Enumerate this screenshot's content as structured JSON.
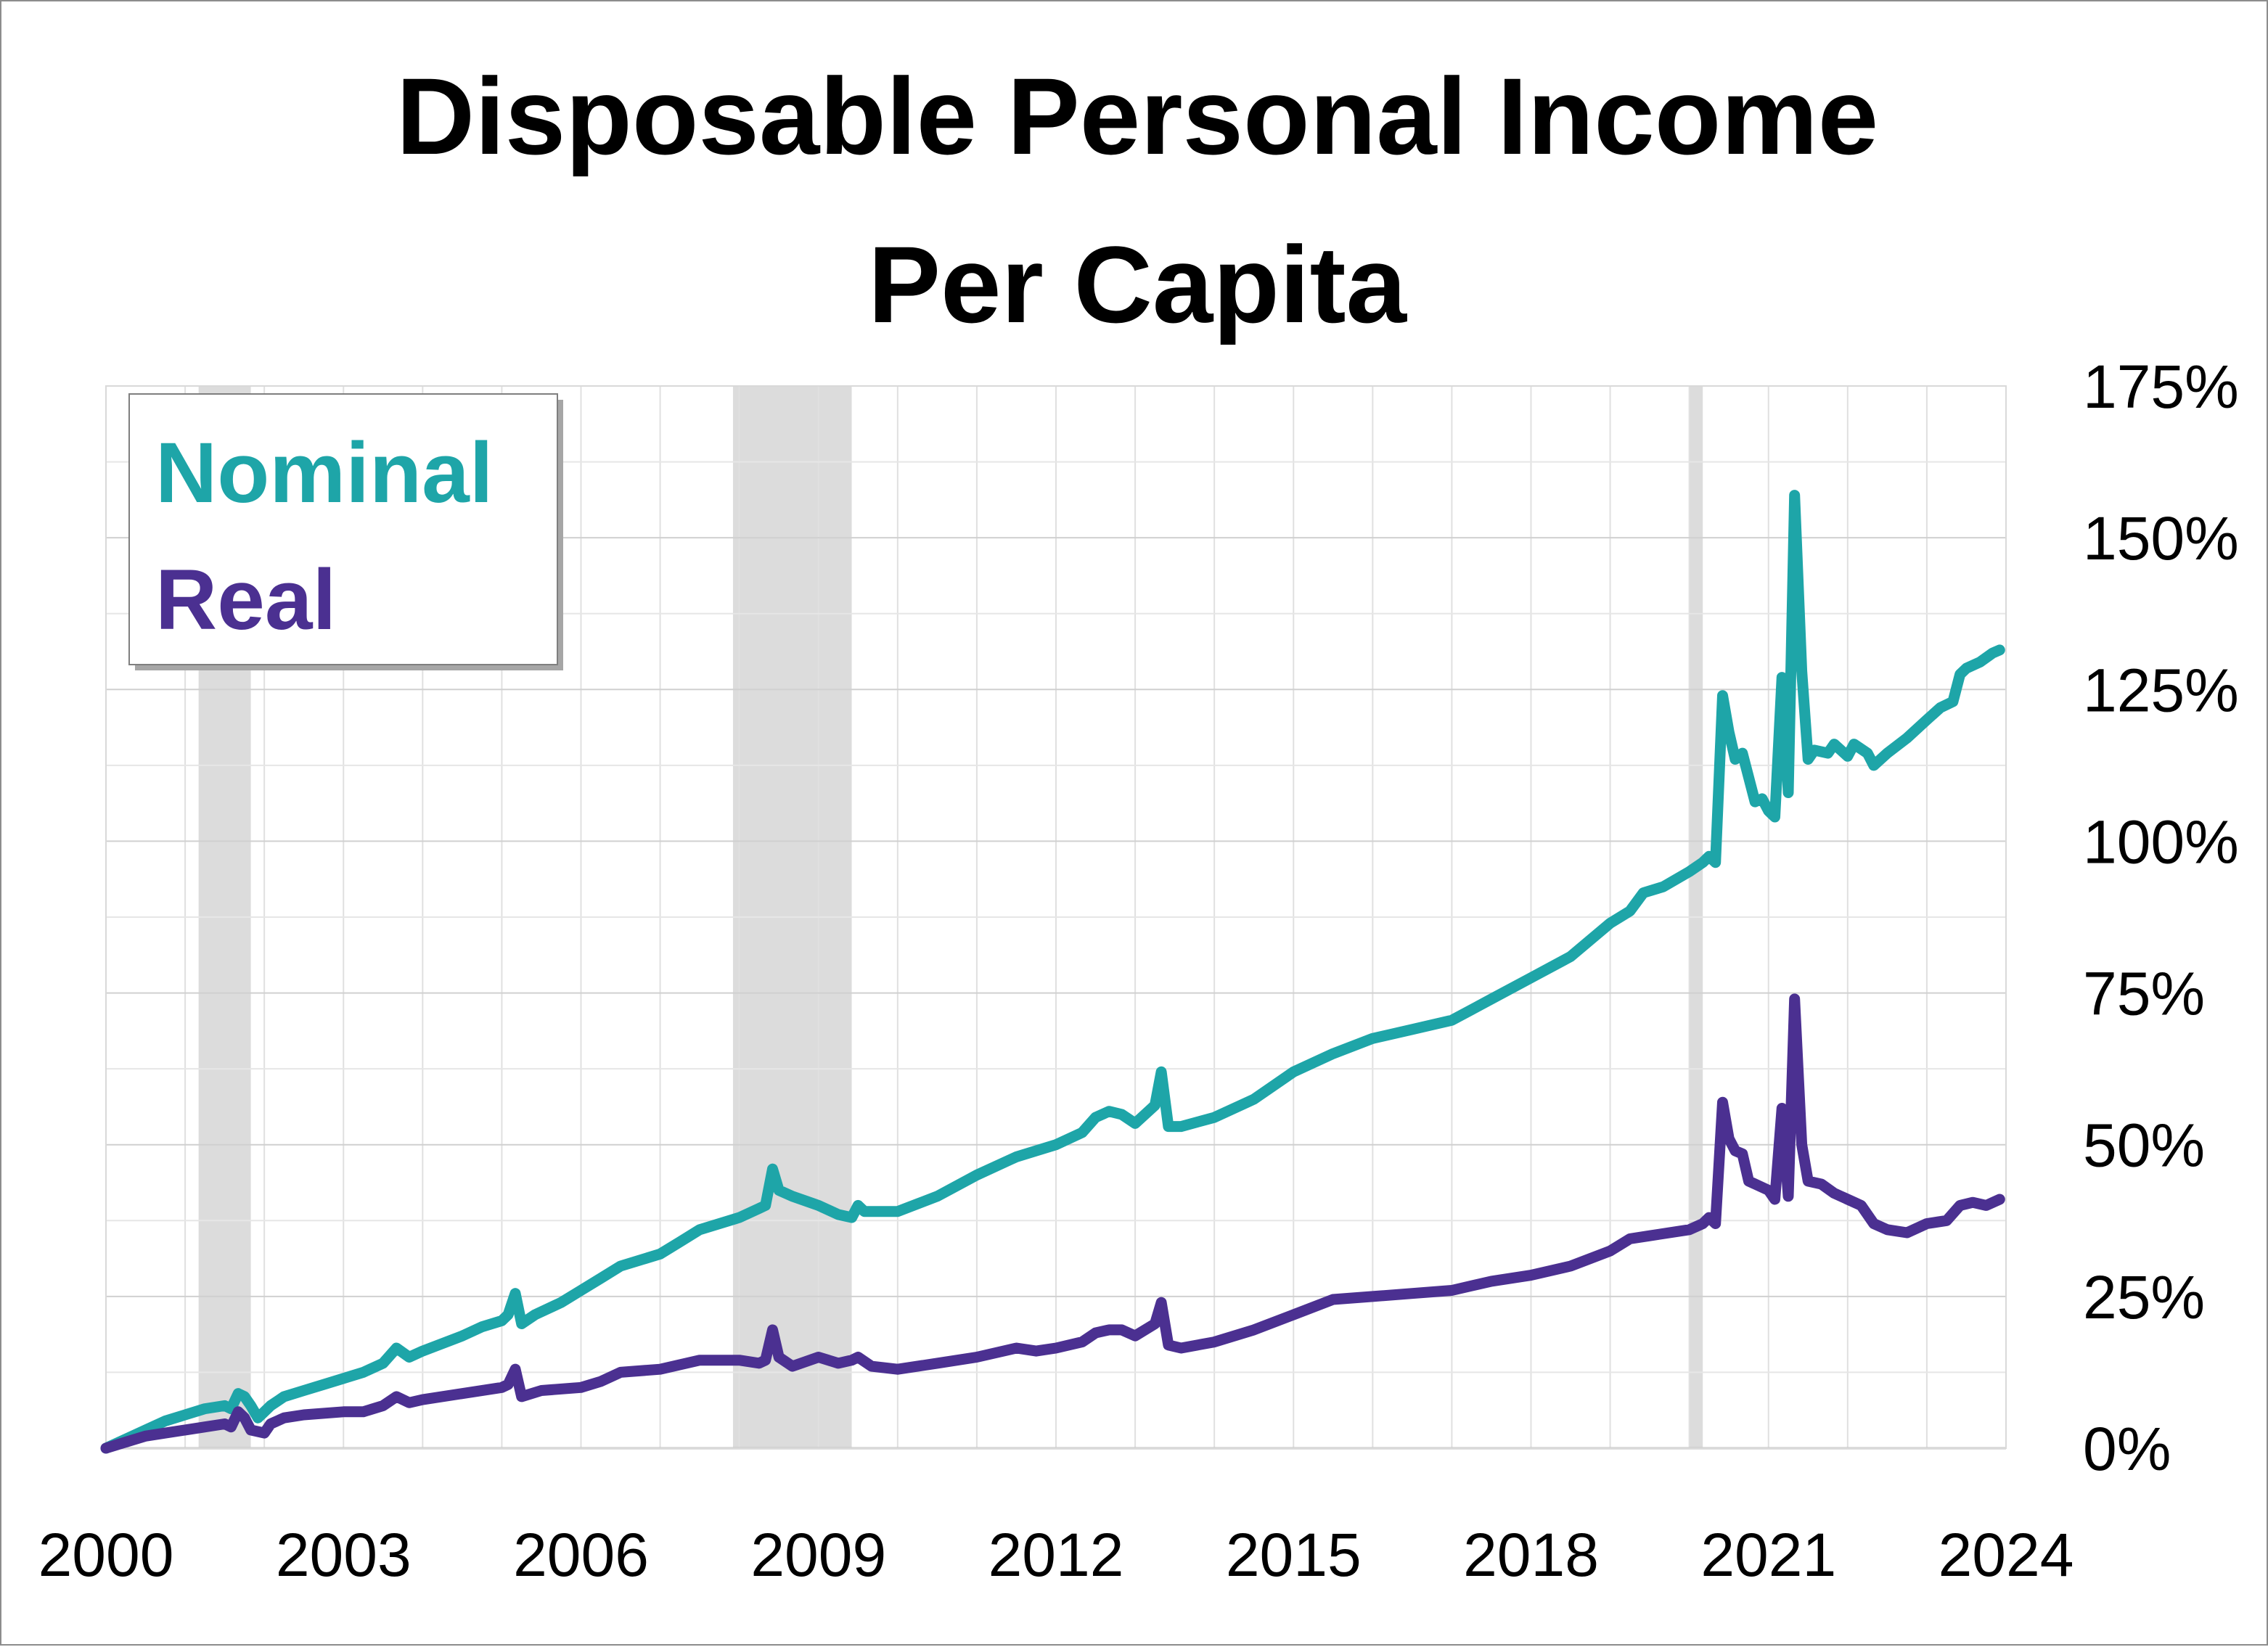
{
  "chart_data": {
    "type": "line",
    "title": "Disposable Personal Income",
    "subtitle": "Per Capita",
    "xlabel": "",
    "ylabel": "",
    "x_range": [
      2000,
      2024
    ],
    "x_ticks": [
      "2000",
      "2003",
      "2006",
      "2009",
      "2012",
      "2015",
      "2018",
      "2021",
      "2024"
    ],
    "y_range": [
      0,
      175
    ],
    "y_ticks": [
      "0%",
      "25%",
      "50%",
      "75%",
      "100%",
      "125%",
      "150%",
      "175%"
    ],
    "y_unit": "percent",
    "grid": true,
    "legend_position": "top-left",
    "recessions": [
      {
        "start": 2001.17,
        "end": 2001.83
      },
      {
        "start": 2007.92,
        "end": 2009.42
      },
      {
        "start": 2020.0,
        "end": 2020.17
      }
    ],
    "series": [
      {
        "name": "Nominal",
        "color": "#1ea5a8",
        "points": [
          [
            2000.0,
            0
          ],
          [
            2000.25,
            1.5
          ],
          [
            2000.5,
            3
          ],
          [
            2000.75,
            4.5
          ],
          [
            2001.0,
            5.5
          ],
          [
            2001.25,
            6.5
          ],
          [
            2001.5,
            7
          ],
          [
            2001.58,
            6.5
          ],
          [
            2001.67,
            9
          ],
          [
            2001.75,
            8.5
          ],
          [
            2001.83,
            7
          ],
          [
            2001.92,
            5
          ],
          [
            2002.0,
            6
          ],
          [
            2002.08,
            7
          ],
          [
            2002.25,
            8.5
          ],
          [
            2002.5,
            9.5
          ],
          [
            2002.75,
            10.5
          ],
          [
            2003.0,
            11.5
          ],
          [
            2003.25,
            12.5
          ],
          [
            2003.5,
            14
          ],
          [
            2003.67,
            16.5
          ],
          [
            2003.83,
            15
          ],
          [
            2004.0,
            16
          ],
          [
            2004.5,
            18.5
          ],
          [
            2004.75,
            20
          ],
          [
            2005.0,
            21
          ],
          [
            2005.08,
            22
          ],
          [
            2005.17,
            25.5
          ],
          [
            2005.25,
            20.5
          ],
          [
            2005.42,
            22
          ],
          [
            2005.75,
            24
          ],
          [
            2006.0,
            26
          ],
          [
            2006.25,
            28
          ],
          [
            2006.5,
            30
          ],
          [
            2007.0,
            32
          ],
          [
            2007.25,
            34
          ],
          [
            2007.5,
            36
          ],
          [
            2008.0,
            38
          ],
          [
            2008.25,
            39.5
          ],
          [
            2008.33,
            40
          ],
          [
            2008.42,
            46
          ],
          [
            2008.5,
            42.5
          ],
          [
            2008.67,
            41.5
          ],
          [
            2009.0,
            40
          ],
          [
            2009.25,
            38.5
          ],
          [
            2009.42,
            38
          ],
          [
            2009.5,
            40
          ],
          [
            2009.58,
            39
          ],
          [
            2010.0,
            39
          ],
          [
            2010.5,
            41.5
          ],
          [
            2011.0,
            45
          ],
          [
            2011.5,
            48
          ],
          [
            2011.75,
            49
          ],
          [
            2012.0,
            50
          ],
          [
            2012.33,
            52
          ],
          [
            2012.5,
            54.5
          ],
          [
            2012.67,
            55.5
          ],
          [
            2012.83,
            55
          ],
          [
            2013.0,
            53.5
          ],
          [
            2013.25,
            56.5
          ],
          [
            2013.33,
            62
          ],
          [
            2013.42,
            53
          ],
          [
            2013.58,
            53
          ],
          [
            2014.0,
            54.5
          ],
          [
            2014.5,
            57.5
          ],
          [
            2015.0,
            62
          ],
          [
            2015.5,
            65
          ],
          [
            2016.0,
            67.5
          ],
          [
            2016.5,
            69
          ],
          [
            2017.0,
            70.5
          ],
          [
            2017.5,
            74
          ],
          [
            2018.0,
            77.5
          ],
          [
            2018.5,
            81
          ],
          [
            2019.0,
            86.5
          ],
          [
            2019.25,
            88.5
          ],
          [
            2019.42,
            91.5
          ],
          [
            2019.67,
            92.5
          ],
          [
            2020.0,
            95
          ],
          [
            2020.17,
            96.5
          ],
          [
            2020.25,
            97.5
          ],
          [
            2020.33,
            96.5
          ],
          [
            2020.42,
            124
          ],
          [
            2020.5,
            118
          ],
          [
            2020.58,
            113.5
          ],
          [
            2020.67,
            114.5
          ],
          [
            2020.83,
            106.5
          ],
          [
            2020.92,
            107
          ],
          [
            2021.0,
            105
          ],
          [
            2021.08,
            104
          ],
          [
            2021.17,
            127
          ],
          [
            2021.25,
            108
          ],
          [
            2021.33,
            157
          ],
          [
            2021.42,
            128
          ],
          [
            2021.5,
            113.5
          ],
          [
            2021.58,
            115
          ],
          [
            2021.75,
            114.5
          ],
          [
            2021.83,
            116
          ],
          [
            2022.0,
            114
          ],
          [
            2022.08,
            116
          ],
          [
            2022.25,
            114.5
          ],
          [
            2022.33,
            112.5
          ],
          [
            2022.5,
            114.5
          ],
          [
            2022.75,
            117
          ],
          [
            2023.0,
            120
          ],
          [
            2023.17,
            122
          ],
          [
            2023.33,
            123
          ],
          [
            2023.42,
            127.5
          ],
          [
            2023.5,
            128.5
          ],
          [
            2023.67,
            129.5
          ],
          [
            2023.83,
            131
          ],
          [
            2023.92,
            131.5
          ]
        ]
      },
      {
        "name": "Real",
        "color": "#4b3091",
        "points": [
          [
            2000.0,
            0
          ],
          [
            2000.25,
            1
          ],
          [
            2000.5,
            2
          ],
          [
            2000.75,
            2.5
          ],
          [
            2001.0,
            3
          ],
          [
            2001.25,
            3.5
          ],
          [
            2001.5,
            4
          ],
          [
            2001.58,
            3.5
          ],
          [
            2001.67,
            6
          ],
          [
            2001.75,
            5
          ],
          [
            2001.83,
            3
          ],
          [
            2002.0,
            2.5
          ],
          [
            2002.08,
            4
          ],
          [
            2002.25,
            5
          ],
          [
            2002.5,
            5.5
          ],
          [
            2003.0,
            6
          ],
          [
            2003.25,
            6
          ],
          [
            2003.5,
            7
          ],
          [
            2003.67,
            8.5
          ],
          [
            2003.83,
            7.5
          ],
          [
            2004.0,
            8
          ],
          [
            2004.5,
            9
          ],
          [
            2005.0,
            10
          ],
          [
            2005.08,
            10.5
          ],
          [
            2005.17,
            13
          ],
          [
            2005.25,
            8.5
          ],
          [
            2005.5,
            9.5
          ],
          [
            2006.0,
            10
          ],
          [
            2006.25,
            11
          ],
          [
            2006.5,
            12.5
          ],
          [
            2007.0,
            13
          ],
          [
            2007.5,
            14.5
          ],
          [
            2008.0,
            14.5
          ],
          [
            2008.25,
            14
          ],
          [
            2008.33,
            14.5
          ],
          [
            2008.42,
            19.5
          ],
          [
            2008.5,
            15
          ],
          [
            2008.67,
            13.5
          ],
          [
            2009.0,
            15
          ],
          [
            2009.25,
            14
          ],
          [
            2009.42,
            14.5
          ],
          [
            2009.5,
            15
          ],
          [
            2009.67,
            13.5
          ],
          [
            2010.0,
            13
          ],
          [
            2010.5,
            14
          ],
          [
            2011.0,
            15
          ],
          [
            2011.5,
            16.5
          ],
          [
            2011.75,
            16
          ],
          [
            2012.0,
            16.5
          ],
          [
            2012.33,
            17.5
          ],
          [
            2012.5,
            19
          ],
          [
            2012.67,
            19.5
          ],
          [
            2012.83,
            19.5
          ],
          [
            2013.0,
            18.5
          ],
          [
            2013.25,
            20.5
          ],
          [
            2013.33,
            24
          ],
          [
            2013.42,
            17
          ],
          [
            2013.58,
            16.5
          ],
          [
            2014.0,
            17.5
          ],
          [
            2014.5,
            19.5
          ],
          [
            2015.0,
            22
          ],
          [
            2015.5,
            24.5
          ],
          [
            2016.0,
            25
          ],
          [
            2016.5,
            25.5
          ],
          [
            2017.0,
            26
          ],
          [
            2017.5,
            27.5
          ],
          [
            2018.0,
            28.5
          ],
          [
            2018.5,
            30
          ],
          [
            2019.0,
            32.5
          ],
          [
            2019.25,
            34.5
          ],
          [
            2019.5,
            35
          ],
          [
            2020.0,
            36
          ],
          [
            2020.17,
            37
          ],
          [
            2020.25,
            38
          ],
          [
            2020.33,
            37
          ],
          [
            2020.42,
            57
          ],
          [
            2020.5,
            51
          ],
          [
            2020.58,
            49
          ],
          [
            2020.67,
            48.5
          ],
          [
            2020.75,
            44
          ],
          [
            2021.0,
            42.5
          ],
          [
            2021.08,
            41
          ],
          [
            2021.17,
            56
          ],
          [
            2021.25,
            41.5
          ],
          [
            2021.33,
            74
          ],
          [
            2021.42,
            50
          ],
          [
            2021.5,
            44
          ],
          [
            2021.67,
            43.5
          ],
          [
            2021.83,
            42
          ],
          [
            2022.0,
            41
          ],
          [
            2022.17,
            40
          ],
          [
            2022.33,
            37
          ],
          [
            2022.5,
            36
          ],
          [
            2022.75,
            35.5
          ],
          [
            2023.0,
            37
          ],
          [
            2023.25,
            37.5
          ],
          [
            2023.42,
            40
          ],
          [
            2023.58,
            40.5
          ],
          [
            2023.75,
            40
          ],
          [
            2023.92,
            41
          ]
        ]
      }
    ]
  }
}
